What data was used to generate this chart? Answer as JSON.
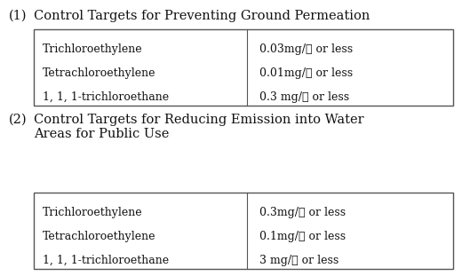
{
  "bg_color": "#ffffff",
  "text_color": "#111111",
  "section1_label": "(1)",
  "section1_title": "Control Targets for Preventing Ground Permeation",
  "section2_label": "(2)",
  "section2_title_line1": "Control Targets for Reducing Emission into Water",
  "section2_title_line2": "Areas for Public Use",
  "table1_col1": [
    "Trichloroethylene",
    "Tetrachloroethylene",
    "1, 1, 1-trichloroethane"
  ],
  "table1_col2": [
    "0.03mg/ℓ or less",
    "0.01mg/ℓ or less",
    "0.3 mg/ℓ or less"
  ],
  "table2_col1": [
    "Trichloroethylene",
    "Tetrachloroethylene",
    "1, 1, 1-trichloroethane"
  ],
  "table2_col2": [
    "0.3mg/ℓ or less",
    "0.1mg/ℓ or less",
    "3 mg/ℓ or less"
  ],
  "font_size": 9.0,
  "header_font_size": 10.5,
  "label_font_size": 10.5
}
